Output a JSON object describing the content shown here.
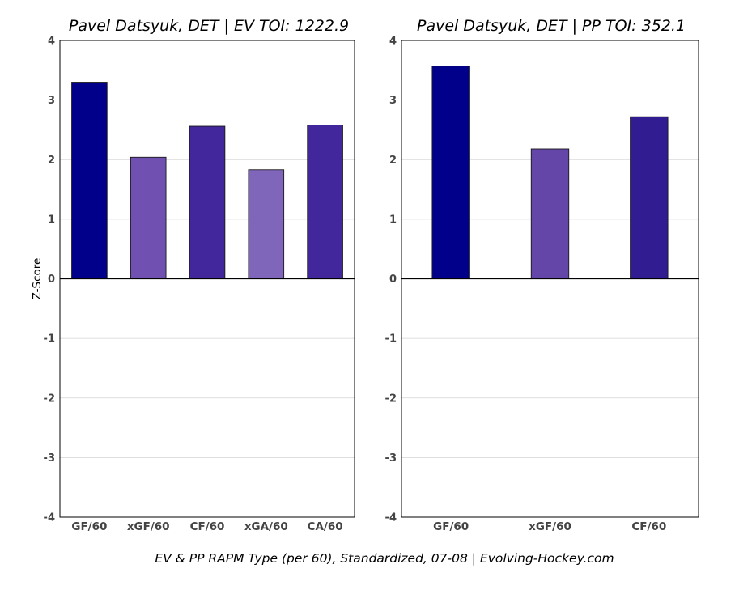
{
  "caption": "EV & PP RAPM Type (per 60), Standardized, 07-08    |    Evolving-Hockey.com",
  "chart_data": [
    {
      "type": "bar",
      "title": "Pavel Datsyuk, DET  |  EV TOI: 1222.9",
      "ylabel": "Z-Score",
      "xlabel": "",
      "ylim": [
        -4,
        4
      ],
      "yticks": [
        "4",
        "3",
        "2",
        "1",
        "0",
        "-1",
        "-2",
        "-3",
        "-4"
      ],
      "grid": true,
      "categories": [
        "GF/60",
        "xGF/60",
        "CF/60",
        "xGA/60",
        "CA/60"
      ],
      "values": [
        3.3,
        2.04,
        2.56,
        1.83,
        2.58
      ],
      "colors": [
        "#00008b",
        "#7050b0",
        "#42269b",
        "#8066bb",
        "#42269b"
      ]
    },
    {
      "type": "bar",
      "title": "Pavel Datsyuk, DET  |  PP TOI: 352.1",
      "ylabel": "",
      "xlabel": "",
      "ylim": [
        -4,
        4
      ],
      "yticks": [
        "4",
        "3",
        "2",
        "1",
        "0",
        "-1",
        "-2",
        "-3",
        "-4"
      ],
      "grid": true,
      "categories": [
        "GF/60",
        "xGF/60",
        "CF/60"
      ],
      "values": [
        3.57,
        2.18,
        2.72
      ],
      "colors": [
        "#00008b",
        "#6446a8",
        "#321c92"
      ]
    }
  ]
}
